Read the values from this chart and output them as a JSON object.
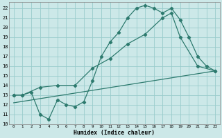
{
  "xlabel": "Humidex (Indice chaleur)",
  "bg_color": "#cce8e8",
  "grid_color": "#99cccc",
  "line_color": "#2d7a6e",
  "xlim": [
    -0.5,
    23.5
  ],
  "ylim": [
    10,
    22.6
  ],
  "yticks": [
    10,
    11,
    12,
    13,
    14,
    15,
    16,
    17,
    18,
    19,
    20,
    21,
    22
  ],
  "xticks": [
    0,
    1,
    2,
    3,
    4,
    5,
    6,
    7,
    8,
    9,
    10,
    11,
    12,
    13,
    14,
    15,
    16,
    17,
    18,
    19,
    20,
    21,
    22,
    23
  ],
  "line1_x": [
    0,
    1,
    2,
    3,
    4,
    5,
    6,
    7,
    8,
    9,
    10,
    11,
    12,
    13,
    14,
    15,
    16,
    17,
    18,
    19,
    20,
    21,
    22,
    23
  ],
  "line1_y": [
    13,
    13,
    13.3,
    11,
    10.5,
    12.5,
    12,
    11.8,
    12.3,
    14.5,
    17,
    18.5,
    19.5,
    21,
    22,
    22.3,
    22,
    21.5,
    22,
    20.8,
    19,
    17,
    16,
    15.5
  ],
  "line2_x": [
    0,
    1,
    3,
    5,
    7,
    9,
    11,
    13,
    15,
    17,
    18,
    19,
    21,
    23
  ],
  "line2_y": [
    13,
    13,
    13.8,
    14,
    14,
    15.8,
    16.8,
    18.3,
    19.3,
    21,
    21.5,
    19,
    16,
    15.5
  ],
  "line3_x": [
    0,
    23
  ],
  "line3_y": [
    12.2,
    15.5
  ]
}
